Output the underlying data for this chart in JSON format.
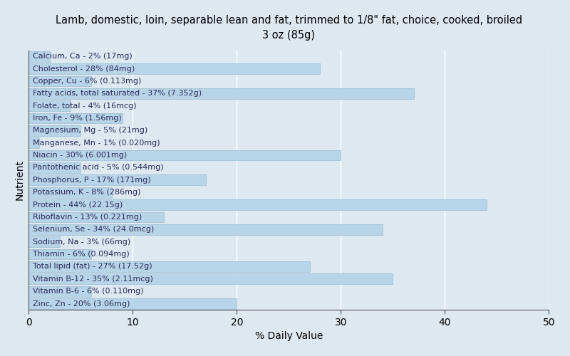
{
  "title": "Lamb, domestic, loin, separable lean and fat, trimmed to 1/8\" fat, choice, cooked, broiled\n3 oz (85g)",
  "xlabel": "% Daily Value",
  "ylabel": "Nutrient",
  "background_color": "#dde8f0",
  "bar_color": "#b8d4e8",
  "bar_edge_color": "#9bbdd4",
  "xlim": [
    0,
    50
  ],
  "xticks": [
    0,
    10,
    20,
    30,
    40,
    50
  ],
  "nutrients": [
    "Calcium, Ca - 2% (17mg)",
    "Cholesterol - 28% (84mg)",
    "Copper, Cu - 6% (0.113mg)",
    "Fatty acids, total saturated - 37% (7.352g)",
    "Folate, total - 4% (16mcg)",
    "Iron, Fe - 9% (1.56mg)",
    "Magnesium, Mg - 5% (21mg)",
    "Manganese, Mn - 1% (0.020mg)",
    "Niacin - 30% (6.001mg)",
    "Pantothenic acid - 5% (0.544mg)",
    "Phosphorus, P - 17% (171mg)",
    "Potassium, K - 8% (286mg)",
    "Protein - 44% (22.15g)",
    "Riboflavin - 13% (0.221mg)",
    "Selenium, Se - 34% (24.0mcg)",
    "Sodium, Na - 3% (66mg)",
    "Thiamin - 6% (0.094mg)",
    "Total lipid (fat) - 27% (17.52g)",
    "Vitamin B-12 - 35% (2.11mcg)",
    "Vitamin B-6 - 6% (0.110mg)",
    "Zinc, Zn - 20% (3.06mg)"
  ],
  "values": [
    2,
    28,
    6,
    37,
    4,
    9,
    5,
    1,
    30,
    5,
    17,
    8,
    44,
    13,
    34,
    3,
    6,
    27,
    35,
    6,
    20
  ],
  "label_threshold": 10,
  "text_fontsize": 8,
  "title_fontsize": 10.5,
  "xlabel_fontsize": 10,
  "ylabel_fontsize": 10
}
